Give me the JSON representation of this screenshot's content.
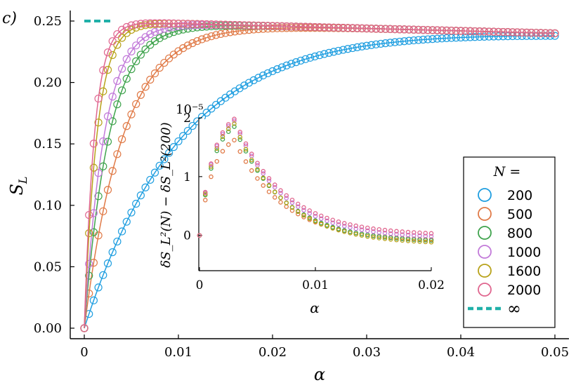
{
  "chart_data": [
    {
      "type": "scatter",
      "panel_label": "c)",
      "title": "",
      "xlabel": "α",
      "ylabel": "S_L",
      "xlim": [
        0,
        0.05
      ],
      "ylim": [
        0,
        0.25
      ],
      "xticks": [
        "0",
        "0.01",
        "0.02",
        "0.03",
        "0.04",
        "0.05"
      ],
      "yticks": [
        "0.00",
        "0.05",
        "0.10",
        "0.15",
        "0.20",
        "0.25"
      ],
      "legend_title": "N =",
      "legend_position": "bottom-right",
      "series": [
        {
          "name": "200",
          "color": "#1f9ee0",
          "k": 95
        },
        {
          "name": "500",
          "color": "#e07a47",
          "k": 240
        },
        {
          "name": "800",
          "color": "#3fa34d",
          "k": 375
        },
        {
          "name": "1000",
          "color": "#c27ad9",
          "k": 470
        },
        {
          "name": "1600",
          "color": "#b8a21a",
          "k": 740
        },
        {
          "name": "2000",
          "color": "#e0668f",
          "k": 920
        }
      ],
      "limit_series": {
        "name": "∞",
        "color": "#1fb0a8",
        "value": 0.25,
        "x_range": [
          0,
          0.003
        ]
      },
      "curve_model": "S = A(α)·(1 − exp(−k·α)), A(α) = 0.25 − 0.2·α",
      "markers": "circle",
      "line_overlay": true
    },
    {
      "type": "scatter",
      "panel": "inset",
      "xlabel": "α",
      "ylabel": "δS_L²(N) − δS_L²(200)",
      "scale_label": "10⁻⁵",
      "xlim": [
        0,
        0.02
      ],
      "ylim": [
        -0.6,
        2.0
      ],
      "xticks": [
        "0",
        "0.01",
        "0.02"
      ],
      "yticks": [
        "0",
        "1",
        "2"
      ],
      "series": [
        {
          "name": "500",
          "color": "#e07a47",
          "peak": 1.62,
          "tail": -0.1
        },
        {
          "name": "800",
          "color": "#3fa34d",
          "peak": 1.85,
          "tail": -0.12
        },
        {
          "name": "1000",
          "color": "#c27ad9",
          "peak": 1.95,
          "tail": -0.05
        },
        {
          "name": "1600",
          "color": "#b8a21a",
          "peak": 1.9,
          "tail": -0.15
        },
        {
          "name": "2000",
          "color": "#e0668f",
          "peak": 1.98,
          "tail": 0.0
        }
      ]
    }
  ]
}
